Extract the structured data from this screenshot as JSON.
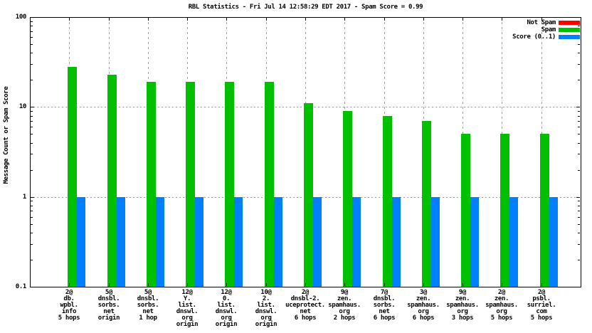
{
  "title": "RBL Statistics - Fri Jul 14 12:58:29 EDT 2017 - Spam Score = 0.99",
  "y_axis_label": "Message Count or Spam Score",
  "xlabel": "",
  "chart_data": {
    "type": "bar",
    "y_scale": "log",
    "ylim": [
      0.1,
      100
    ],
    "grid": true,
    "legend_position": "top-right-inside",
    "yticks": [
      {
        "value": 100,
        "label": "100"
      },
      {
        "value": 10,
        "label": "10"
      },
      {
        "value": 1,
        "label": "1"
      },
      {
        "value": 0.1,
        "label": "0.1"
      }
    ],
    "categories": [
      [
        "2@",
        "db.",
        "wpbl.",
        "info",
        "5 hops"
      ],
      [
        "5@",
        "dnsbl.",
        "sorbs.",
        "net",
        "origin"
      ],
      [
        "5@",
        "dnsbl.",
        "sorbs.",
        "net",
        "1 hop"
      ],
      [
        "12@",
        "Y.",
        "list.",
        "dnswl.",
        "org",
        "origin"
      ],
      [
        "12@",
        "0.",
        "list.",
        "dnswl.",
        "org",
        "origin"
      ],
      [
        "10@",
        "2.",
        "list.",
        "dnswl.",
        "org",
        "origin"
      ],
      [
        "2@",
        "dnsbl-2.",
        "uceprotect.",
        "net",
        "6 hops"
      ],
      [
        "9@",
        "zen.",
        "spamhaus.",
        "org",
        "2 hops"
      ],
      [
        "7@",
        "dnsbl.",
        "sorbs.",
        "net",
        "6 hops"
      ],
      [
        "3@",
        "zen.",
        "spamhaus.",
        "org",
        "6 hops"
      ],
      [
        "9@",
        "zen.",
        "spamhaus.",
        "org",
        "3 hops"
      ],
      [
        "2@",
        "zen.",
        "spamhaus.",
        "org",
        "5 hops"
      ],
      [
        "2@",
        "psbl.",
        "surriel.",
        "com",
        "5 hops"
      ]
    ],
    "series": [
      {
        "name": "Not Spam",
        "color": "#ff0000",
        "values": [
          0,
          0,
          0,
          0,
          0,
          0,
          0,
          0,
          0,
          0,
          0,
          0,
          0
        ]
      },
      {
        "name": "Spam",
        "color": "#00c000",
        "values": [
          28,
          23,
          19,
          19,
          19,
          19,
          11,
          9,
          8,
          7,
          5,
          5,
          5
        ]
      },
      {
        "name": "Score (0..1)",
        "color": "#0080ff",
        "values": [
          0.99,
          0.99,
          0.99,
          0.99,
          0.99,
          0.99,
          0.99,
          0.99,
          0.99,
          0.99,
          0.99,
          0.99,
          0.99
        ]
      }
    ]
  }
}
